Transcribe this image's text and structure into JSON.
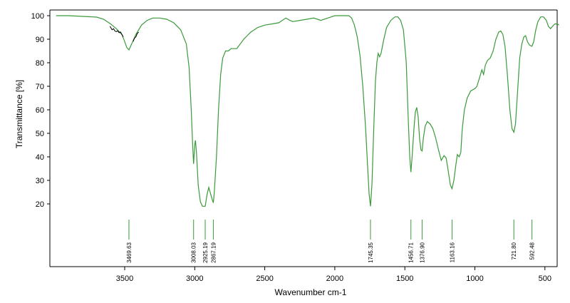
{
  "chart_data": {
    "type": "line",
    "xlabel": "Wavenumber cm-1",
    "ylabel": "Transmittance [%]",
    "xlim": [
      4000,
      400
    ],
    "x_reversed": true,
    "ylim": [
      10,
      100
    ],
    "x_ticks": [
      3500,
      3000,
      2500,
      2000,
      1500,
      1000,
      500
    ],
    "y_ticks": [
      20,
      30,
      40,
      50,
      60,
      70,
      80,
      90,
      100
    ],
    "grid": false,
    "colors": {
      "spectrum": "#3a9a3a",
      "noise": "#000000",
      "peak_markers": "#3a9a3a"
    },
    "series": [
      {
        "points": [
          [
            3990,
            100
          ],
          [
            3900,
            100
          ],
          [
            3800,
            99.7
          ],
          [
            3700,
            99.4
          ],
          [
            3650,
            98.5
          ],
          [
            3600,
            96.5
          ],
          [
            3560,
            94.5
          ],
          [
            3520,
            92
          ],
          [
            3500,
            89
          ],
          [
            3485,
            86.5
          ],
          [
            3469.63,
            85.5
          ],
          [
            3450,
            88
          ],
          [
            3420,
            92
          ],
          [
            3380,
            96
          ],
          [
            3340,
            98
          ],
          [
            3300,
            99
          ],
          [
            3250,
            99
          ],
          [
            3200,
            98.5
          ],
          [
            3150,
            97
          ],
          [
            3100,
            94
          ],
          [
            3060,
            88
          ],
          [
            3040,
            78
          ],
          [
            3025,
            60
          ],
          [
            3015,
            45
          ],
          [
            3008.03,
            37
          ],
          [
            3000,
            45
          ],
          [
            2995,
            47
          ],
          [
            2988,
            42
          ],
          [
            2975,
            28
          ],
          [
            2960,
            21
          ],
          [
            2945,
            19
          ],
          [
            2925.19,
            19
          ],
          [
            2912,
            24
          ],
          [
            2900,
            27
          ],
          [
            2890,
            25
          ],
          [
            2876,
            22
          ],
          [
            2867.19,
            20.5
          ],
          [
            2860,
            25
          ],
          [
            2845,
            40
          ],
          [
            2830,
            60
          ],
          [
            2815,
            75
          ],
          [
            2800,
            82
          ],
          [
            2780,
            85
          ],
          [
            2760,
            85
          ],
          [
            2740,
            86
          ],
          [
            2700,
            86
          ],
          [
            2650,
            90
          ],
          [
            2600,
            93
          ],
          [
            2550,
            95
          ],
          [
            2500,
            96
          ],
          [
            2450,
            96.5
          ],
          [
            2400,
            97
          ],
          [
            2350,
            99
          ],
          [
            2320,
            98
          ],
          [
            2300,
            97.5
          ],
          [
            2250,
            98
          ],
          [
            2200,
            98.5
          ],
          [
            2150,
            99
          ],
          [
            2100,
            98
          ],
          [
            2050,
            99
          ],
          [
            2000,
            100
          ],
          [
            1950,
            100
          ],
          [
            1900,
            100
          ],
          [
            1880,
            99
          ],
          [
            1860,
            96
          ],
          [
            1840,
            91
          ],
          [
            1820,
            83
          ],
          [
            1800,
            70
          ],
          [
            1780,
            52
          ],
          [
            1765,
            35
          ],
          [
            1755,
            24
          ],
          [
            1745.35,
            19
          ],
          [
            1735,
            28
          ],
          [
            1720,
            55
          ],
          [
            1710,
            72
          ],
          [
            1700,
            80
          ],
          [
            1690,
            84
          ],
          [
            1680,
            82.5
          ],
          [
            1670,
            84
          ],
          [
            1650,
            90
          ],
          [
            1630,
            95
          ],
          [
            1600,
            98
          ],
          [
            1570,
            99.5
          ],
          [
            1550,
            99.5
          ],
          [
            1530,
            98
          ],
          [
            1510,
            94
          ],
          [
            1490,
            80
          ],
          [
            1475,
            55
          ],
          [
            1465,
            40
          ],
          [
            1456.71,
            33.5
          ],
          [
            1448,
            40
          ],
          [
            1435,
            52
          ],
          [
            1425,
            59
          ],
          [
            1415,
            61
          ],
          [
            1405,
            57
          ],
          [
            1395,
            48
          ],
          [
            1385,
            43
          ],
          [
            1376.9,
            42.5
          ],
          [
            1368,
            48
          ],
          [
            1355,
            53
          ],
          [
            1340,
            55
          ],
          [
            1320,
            54
          ],
          [
            1300,
            52
          ],
          [
            1280,
            48
          ],
          [
            1260,
            43
          ],
          [
            1240,
            38.5
          ],
          [
            1220,
            40.5
          ],
          [
            1205,
            39.5
          ],
          [
            1190,
            34
          ],
          [
            1175,
            28
          ],
          [
            1163.16,
            26.5
          ],
          [
            1150,
            30
          ],
          [
            1135,
            37
          ],
          [
            1125,
            41
          ],
          [
            1112,
            40
          ],
          [
            1100,
            42
          ],
          [
            1090,
            52
          ],
          [
            1075,
            60
          ],
          [
            1055,
            65
          ],
          [
            1030,
            68
          ],
          [
            1000,
            69
          ],
          [
            985,
            70
          ],
          [
            965,
            74
          ],
          [
            950,
            77
          ],
          [
            938,
            75
          ],
          [
            925,
            79
          ],
          [
            910,
            81
          ],
          [
            890,
            82
          ],
          [
            870,
            85
          ],
          [
            850,
            90
          ],
          [
            830,
            93
          ],
          [
            815,
            93.5
          ],
          [
            800,
            92
          ],
          [
            785,
            87
          ],
          [
            768,
            75
          ],
          [
            750,
            60
          ],
          [
            735,
            52
          ],
          [
            721.8,
            50.5
          ],
          [
            710,
            54
          ],
          [
            695,
            68
          ],
          [
            680,
            82
          ],
          [
            665,
            88
          ],
          [
            650,
            91
          ],
          [
            638,
            91.5
          ],
          [
            625,
            89
          ],
          [
            610,
            87.5
          ],
          [
            592.48,
            87
          ],
          [
            580,
            89
          ],
          [
            565,
            94
          ],
          [
            550,
            97.5
          ],
          [
            530,
            99.5
          ],
          [
            510,
            99.5
          ],
          [
            490,
            98
          ],
          [
            475,
            95.5
          ],
          [
            460,
            94.5
          ],
          [
            445,
            95.5
          ],
          [
            430,
            96.5
          ],
          [
            410,
            96.5
          ],
          [
            400,
            96
          ]
        ]
      }
    ],
    "noise_segments": [
      [
        [
          3605,
          95.5
        ],
        [
          3590,
          94
        ],
        [
          3580,
          94.5
        ],
        [
          3570,
          93.5
        ],
        [
          3560,
          93.2
        ],
        [
          3550,
          93.6
        ],
        [
          3540,
          92.8
        ],
        [
          3530,
          93.1
        ],
        [
          3520,
          92
        ],
        [
          3510,
          91
        ]
      ],
      [
        [
          3440,
          89
        ],
        [
          3430,
          90.5
        ],
        [
          3420,
          91
        ],
        [
          3410,
          92.5
        ],
        [
          3400,
          93
        ]
      ]
    ],
    "peak_labels": [
      "3469.63",
      "3008.03",
      "2925.19",
      "2867.19",
      "1745.35",
      "1456.71",
      "1376.90",
      "1163.16",
      "721.80",
      "592.48"
    ],
    "peak_positions": [
      3469.63,
      3008.03,
      2925.19,
      2867.19,
      1745.35,
      1456.71,
      1376.9,
      1163.16,
      721.8,
      592.48
    ]
  }
}
